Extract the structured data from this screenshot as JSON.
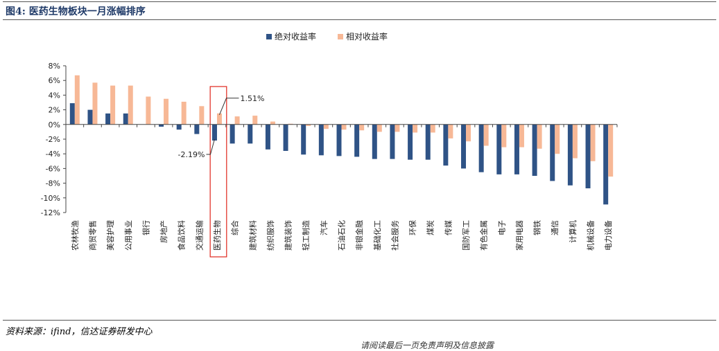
{
  "figure": {
    "title": "图4: 医药生物板块一月涨幅排序",
    "source": "资料来源：ifind，信达证券研发中心",
    "cutoff_text": "请阅读最后一页免责声明及信息披露"
  },
  "chart_data": {
    "type": "bar",
    "title": "图4: 医药生物板块一月涨幅排序",
    "xlabel": "",
    "ylabel": "",
    "ylim": [
      -12,
      8
    ],
    "yticks": [
      8,
      6,
      4,
      2,
      0,
      -2,
      -4,
      -6,
      -8,
      -10,
      -12
    ],
    "ytick_labels": [
      "8%",
      "6%",
      "4%",
      "2%",
      "0%",
      "-2%",
      "-4%",
      "-6%",
      "-8%",
      "-10%",
      "-12%"
    ],
    "legend_position": "top-center",
    "categories": [
      "农林牧渔",
      "商贸零售",
      "美容护理",
      "公用事业",
      "银行",
      "房地产",
      "食品饮料",
      "交通运输",
      "医药生物",
      "综合",
      "建筑材料",
      "纺织服饰",
      "建筑装饰",
      "轻工制造",
      "汽车",
      "石油石化",
      "非银金融",
      "基础化工",
      "社会服务",
      "环保",
      "煤炭",
      "传媒",
      "国防军工",
      "有色金属",
      "电子",
      "家用电器",
      "钢铁",
      "通信",
      "计算机",
      "机械设备",
      "电力设备"
    ],
    "series": [
      {
        "name": "绝对收益率",
        "color": "#2f5386",
        "values": [
          2.9,
          2.0,
          1.5,
          1.5,
          0.0,
          -0.3,
          -0.7,
          -1.3,
          -2.19,
          -2.6,
          -2.6,
          -3.4,
          -3.6,
          -4.1,
          -4.2,
          -4.3,
          -4.4,
          -4.7,
          -4.7,
          -4.8,
          -4.8,
          -5.6,
          -6.0,
          -6.5,
          -6.8,
          -6.8,
          -7.0,
          -7.7,
          -8.3,
          -8.7,
          -10.9
        ]
      },
      {
        "name": "相对收益率",
        "color": "#f7b896",
        "values": [
          6.7,
          5.7,
          5.3,
          5.3,
          3.8,
          3.5,
          3.1,
          2.5,
          1.51,
          1.1,
          1.2,
          0.4,
          0.1,
          -0.2,
          -0.6,
          -0.7,
          -0.8,
          -1.0,
          -1.0,
          -1.1,
          -1.1,
          -1.9,
          -2.3,
          -2.9,
          -3.1,
          -3.1,
          -3.3,
          -4.0,
          -4.6,
          -5.0,
          -7.1
        ]
      }
    ],
    "annotations": [
      {
        "category": "医药生物",
        "series": "相对收益率",
        "text": "1.51%"
      },
      {
        "category": "医药生物",
        "series": "绝对收益率",
        "text": "-2.19%"
      }
    ],
    "highlight_category": "医药生物"
  }
}
